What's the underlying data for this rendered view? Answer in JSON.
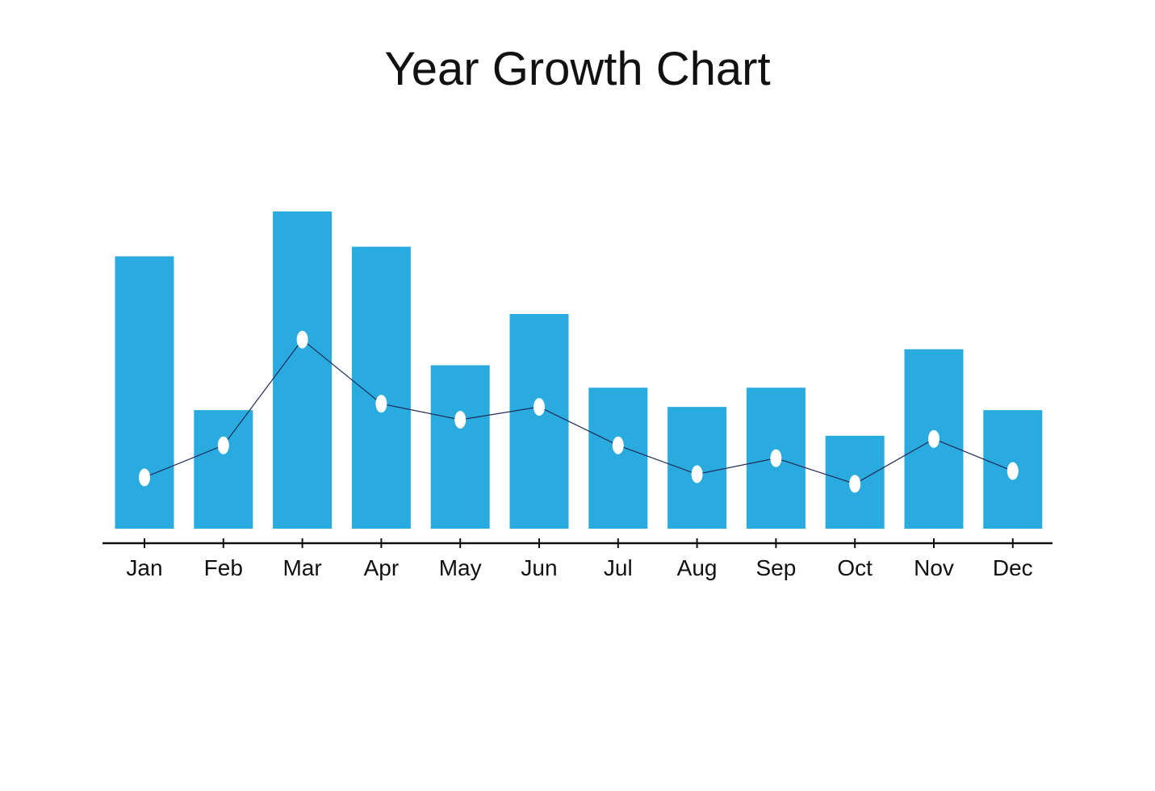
{
  "chart_data": {
    "type": "bar",
    "title": "Year Growth Chart",
    "xlabel": "",
    "ylabel": "",
    "categories": [
      "Jan",
      "Feb",
      "Mar",
      "Apr",
      "May",
      "Jun",
      "Jul",
      "Aug",
      "Sep",
      "Oct",
      "Nov",
      "Dec"
    ],
    "series": [
      {
        "type": "bar",
        "values": [
          85,
          37,
          99,
          88,
          51,
          67,
          44,
          38,
          44,
          29,
          56,
          37
        ]
      },
      {
        "type": "line",
        "values": [
          16,
          26,
          59,
          39,
          34,
          38,
          26,
          17,
          22,
          14,
          28,
          18
        ]
      }
    ],
    "ylim": [
      0,
      100
    ],
    "grid": false,
    "legend": "none",
    "colors": {
      "bar": "#29abe0",
      "line": "#1f2a5a",
      "marker": "#ffffff",
      "axis": "#111111"
    }
  }
}
